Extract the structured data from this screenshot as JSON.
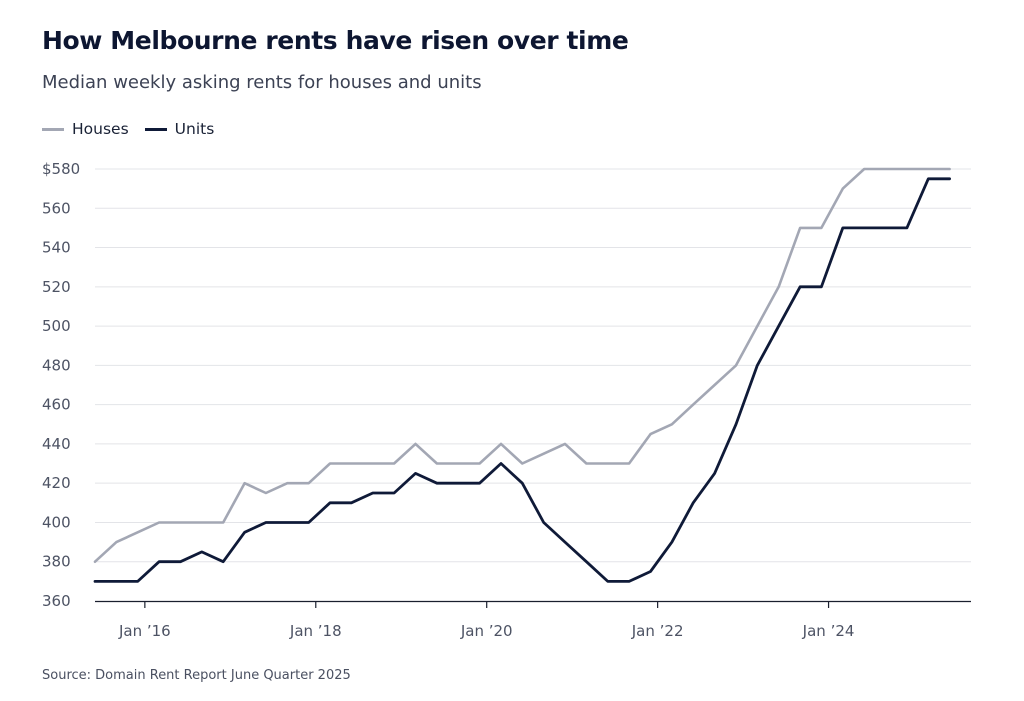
{
  "title": "How Melbourne rents have risen over time",
  "subtitle": "Median weekly asking rents for houses and units",
  "source": "Source: Domain Rent Report June Quarter 2025",
  "colors": {
    "houses": "#a3a7b4",
    "units": "#0f1a38",
    "grid": "#e3e4e8",
    "axis": "#1a1f2e"
  },
  "chart_data": {
    "type": "line",
    "ylim": [
      360,
      580
    ],
    "yticks": [
      360,
      380,
      400,
      420,
      440,
      460,
      480,
      500,
      520,
      540,
      560,
      580
    ],
    "ytick_labels": [
      "360",
      "380",
      "400",
      "420",
      "440",
      "460",
      "480",
      "500",
      "520",
      "540",
      "560",
      "$580"
    ],
    "xticks": [
      "2016-01",
      "2018-01",
      "2020-01",
      "2022-01",
      "2024-01"
    ],
    "xtick_labels": [
      "Jan ’16",
      "Jan ’18",
      "Jan ’20",
      "Jan ’22",
      "Jan ’24"
    ],
    "xlim": [
      "2015-06",
      "2025-09"
    ],
    "grid": true,
    "legend": "top-left",
    "series": [
      {
        "name": "Houses",
        "x": [
          "2015-06",
          "2015-09",
          "2015-12",
          "2016-03",
          "2016-06",
          "2016-09",
          "2016-12",
          "2017-03",
          "2017-06",
          "2017-09",
          "2017-12",
          "2018-03",
          "2018-06",
          "2018-09",
          "2018-12",
          "2019-03",
          "2019-06",
          "2019-09",
          "2019-12",
          "2020-03",
          "2020-06",
          "2020-09",
          "2020-12",
          "2021-03",
          "2021-06",
          "2021-09",
          "2021-12",
          "2022-03",
          "2022-06",
          "2022-09",
          "2022-12",
          "2023-03",
          "2023-06",
          "2023-09",
          "2023-12",
          "2024-03",
          "2024-06",
          "2024-09",
          "2024-12",
          "2025-03",
          "2025-06"
        ],
        "values": [
          380,
          390,
          395,
          400,
          400,
          400,
          400,
          420,
          415,
          420,
          420,
          430,
          430,
          430,
          430,
          440,
          430,
          430,
          430,
          440,
          430,
          435,
          440,
          430,
          430,
          430,
          445,
          450,
          460,
          470,
          480,
          500,
          520,
          550,
          550,
          570,
          580,
          580,
          580,
          580,
          580
        ]
      },
      {
        "name": "Units",
        "x": [
          "2015-06",
          "2015-09",
          "2015-12",
          "2016-03",
          "2016-06",
          "2016-09",
          "2016-12",
          "2017-03",
          "2017-06",
          "2017-09",
          "2017-12",
          "2018-03",
          "2018-06",
          "2018-09",
          "2018-12",
          "2019-03",
          "2019-06",
          "2019-09",
          "2019-12",
          "2020-03",
          "2020-06",
          "2020-09",
          "2020-12",
          "2021-03",
          "2021-06",
          "2021-09",
          "2021-12",
          "2022-03",
          "2022-06",
          "2022-09",
          "2022-12",
          "2023-03",
          "2023-06",
          "2023-09",
          "2023-12",
          "2024-03",
          "2024-06",
          "2024-09",
          "2024-12",
          "2025-03",
          "2025-06"
        ],
        "values": [
          370,
          370,
          370,
          380,
          380,
          385,
          380,
          395,
          400,
          400,
          400,
          410,
          410,
          415,
          415,
          425,
          420,
          420,
          420,
          430,
          420,
          400,
          390,
          380,
          370,
          370,
          375,
          390,
          410,
          425,
          450,
          480,
          500,
          520,
          520,
          550,
          550,
          550,
          550,
          575,
          575
        ]
      }
    ]
  }
}
